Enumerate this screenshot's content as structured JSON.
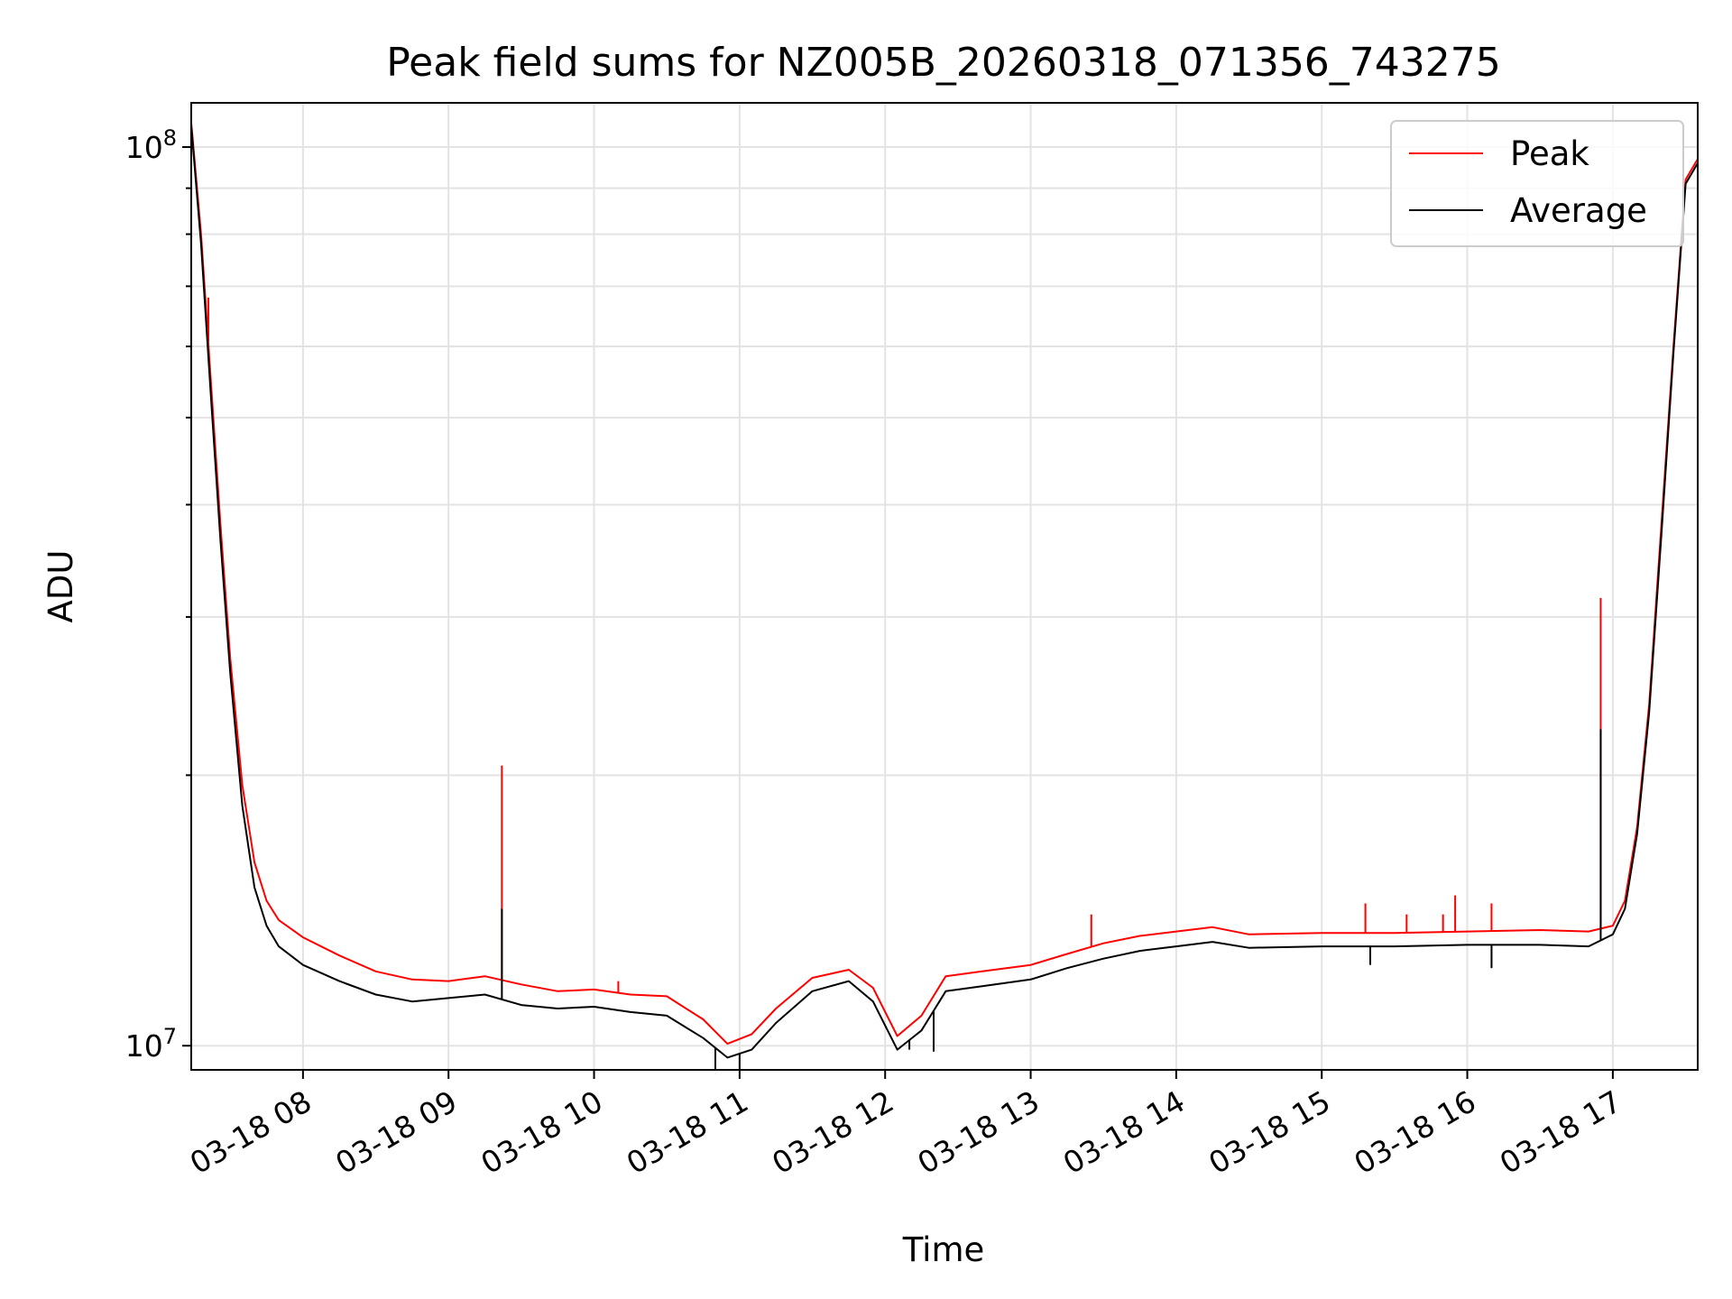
{
  "chart_data": {
    "type": "line",
    "title": "Peak field sums for NZ005B_20260318_071356_743275",
    "xlabel": "Time",
    "ylabel": "ADU",
    "yscale": "log",
    "ylim": [
      9400000,
      112000000
    ],
    "xlim": [
      "2026-03-18 07:13:56",
      "2026-03-18 17:35:00"
    ],
    "grid": true,
    "legend_position": "top-right",
    "x_tick_labels": [
      "03-18 08",
      "03-18 09",
      "03-18 10",
      "03-18 11",
      "03-18 12",
      "03-18 13",
      "03-18 14",
      "03-18 15",
      "03-18 16",
      "03-18 17"
    ],
    "x_ticks": [
      "2026-03-18 08:00",
      "2026-03-18 09:00",
      "2026-03-18 10:00",
      "2026-03-18 11:00",
      "2026-03-18 12:00",
      "2026-03-18 13:00",
      "2026-03-18 14:00",
      "2026-03-18 15:00",
      "2026-03-18 16:00",
      "2026-03-18 17:00"
    ],
    "y_ticks": [
      {
        "value": 10000000,
        "mantissa": "10",
        "exponent": "7"
      },
      {
        "value": 100000000,
        "mantissa": "10",
        "exponent": "8"
      }
    ],
    "series": [
      {
        "name": "Peak",
        "color": "#ff0000",
        "x": [
          "2026-03-18 07:14",
          "2026-03-18 07:18",
          "2026-03-18 07:22",
          "2026-03-18 07:26",
          "2026-03-18 07:30",
          "2026-03-18 07:35",
          "2026-03-18 07:40",
          "2026-03-18 07:45",
          "2026-03-18 07:50",
          "2026-03-18 08:00",
          "2026-03-18 08:15",
          "2026-03-18 08:30",
          "2026-03-18 08:45",
          "2026-03-18 09:00",
          "2026-03-18 09:15",
          "2026-03-18 09:30",
          "2026-03-18 09:45",
          "2026-03-18 10:00",
          "2026-03-18 10:15",
          "2026-03-18 10:30",
          "2026-03-18 10:45",
          "2026-03-18 10:55",
          "2026-03-18 11:05",
          "2026-03-18 11:15",
          "2026-03-18 11:30",
          "2026-03-18 11:45",
          "2026-03-18 11:55",
          "2026-03-18 12:05",
          "2026-03-18 12:15",
          "2026-03-18 12:25",
          "2026-03-18 12:40",
          "2026-03-18 13:00",
          "2026-03-18 13:15",
          "2026-03-18 13:30",
          "2026-03-18 13:45",
          "2026-03-18 14:00",
          "2026-03-18 14:15",
          "2026-03-18 14:30",
          "2026-03-18 15:00",
          "2026-03-18 15:30",
          "2026-03-18 16:00",
          "2026-03-18 16:30",
          "2026-03-18 16:50",
          "2026-03-18 17:00",
          "2026-03-18 17:05",
          "2026-03-18 17:10",
          "2026-03-18 17:15",
          "2026-03-18 17:20",
          "2026-03-18 17:25",
          "2026-03-18 17:30",
          "2026-03-18 17:35"
        ],
        "values": [
          106000000,
          80000000,
          55000000,
          38000000,
          27000000,
          19500000,
          16000000,
          14500000,
          13800000,
          13200000,
          12600000,
          12100000,
          11850000,
          11800000,
          11950000,
          11700000,
          11500000,
          11550000,
          11400000,
          11350000,
          10700000,
          10050000,
          10300000,
          11000000,
          11900000,
          12150000,
          11600000,
          10250000,
          10800000,
          11950000,
          12100000,
          12300000,
          12650000,
          13000000,
          13250000,
          13400000,
          13550000,
          13300000,
          13350000,
          13350000,
          13400000,
          13450000,
          13400000,
          13600000,
          14500000,
          17500000,
          24000000,
          38000000,
          60000000,
          92000000,
          97000000
        ],
        "spikes": [
          {
            "x": "2026-03-18 07:21",
            "value": 68000000
          },
          {
            "x": "2026-03-18 09:22",
            "value": 20500000
          },
          {
            "x": "2026-03-18 10:10",
            "value": 11800000
          },
          {
            "x": "2026-03-18 13:25",
            "value": 14000000
          },
          {
            "x": "2026-03-18 15:18",
            "value": 14400000
          },
          {
            "x": "2026-03-18 15:35",
            "value": 14000000
          },
          {
            "x": "2026-03-18 15:50",
            "value": 14000000
          },
          {
            "x": "2026-03-18 15:55",
            "value": 14700000
          },
          {
            "x": "2026-03-18 16:10",
            "value": 14400000
          },
          {
            "x": "2026-03-18 16:55",
            "value": 31500000
          }
        ]
      },
      {
        "name": "Average",
        "color": "#000000",
        "x": [
          "2026-03-18 07:14",
          "2026-03-18 07:18",
          "2026-03-18 07:22",
          "2026-03-18 07:26",
          "2026-03-18 07:30",
          "2026-03-18 07:35",
          "2026-03-18 07:40",
          "2026-03-18 07:45",
          "2026-03-18 07:50",
          "2026-03-18 08:00",
          "2026-03-18 08:15",
          "2026-03-18 08:30",
          "2026-03-18 08:45",
          "2026-03-18 09:00",
          "2026-03-18 09:15",
          "2026-03-18 09:30",
          "2026-03-18 09:45",
          "2026-03-18 10:00",
          "2026-03-18 10:15",
          "2026-03-18 10:30",
          "2026-03-18 10:45",
          "2026-03-18 10:55",
          "2026-03-18 11:05",
          "2026-03-18 11:15",
          "2026-03-18 11:30",
          "2026-03-18 11:45",
          "2026-03-18 11:55",
          "2026-03-18 12:05",
          "2026-03-18 12:15",
          "2026-03-18 12:25",
          "2026-03-18 12:40",
          "2026-03-18 13:00",
          "2026-03-18 13:15",
          "2026-03-18 13:30",
          "2026-03-18 13:45",
          "2026-03-18 14:00",
          "2026-03-18 14:15",
          "2026-03-18 14:30",
          "2026-03-18 15:00",
          "2026-03-18 15:30",
          "2026-03-18 16:00",
          "2026-03-18 16:30",
          "2026-03-18 16:50",
          "2026-03-18 17:00",
          "2026-03-18 17:05",
          "2026-03-18 17:10",
          "2026-03-18 17:15",
          "2026-03-18 17:20",
          "2026-03-18 17:25",
          "2026-03-18 17:30",
          "2026-03-18 17:35"
        ],
        "values": [
          105000000,
          78000000,
          53000000,
          36500000,
          26000000,
          18500000,
          15000000,
          13600000,
          12900000,
          12300000,
          11800000,
          11400000,
          11200000,
          11300000,
          11400000,
          11100000,
          11000000,
          11050000,
          10900000,
          10800000,
          10200000,
          9700000,
          9900000,
          10600000,
          11500000,
          11800000,
          11200000,
          9900000,
          10400000,
          11500000,
          11650000,
          11850000,
          12200000,
          12500000,
          12750000,
          12900000,
          13050000,
          12850000,
          12900000,
          12900000,
          12950000,
          12950000,
          12900000,
          13300000,
          14200000,
          17200000,
          23500000,
          37000000,
          59000000,
          91000000,
          96000000
        ],
        "dips": [
          {
            "x": "2026-03-18 10:50",
            "value": 9400000
          },
          {
            "x": "2026-03-18 11:00",
            "value": 9400000
          },
          {
            "x": "2026-03-18 12:10",
            "value": 9900000
          },
          {
            "x": "2026-03-18 12:20",
            "value": 9850000
          },
          {
            "x": "2026-03-18 15:20",
            "value": 12300000
          },
          {
            "x": "2026-03-18 16:10",
            "value": 12200000
          }
        ],
        "spikes": [
          {
            "x": "2026-03-18 09:22",
            "value": 14200000
          },
          {
            "x": "2026-03-18 16:55",
            "value": 22500000
          }
        ]
      }
    ]
  }
}
